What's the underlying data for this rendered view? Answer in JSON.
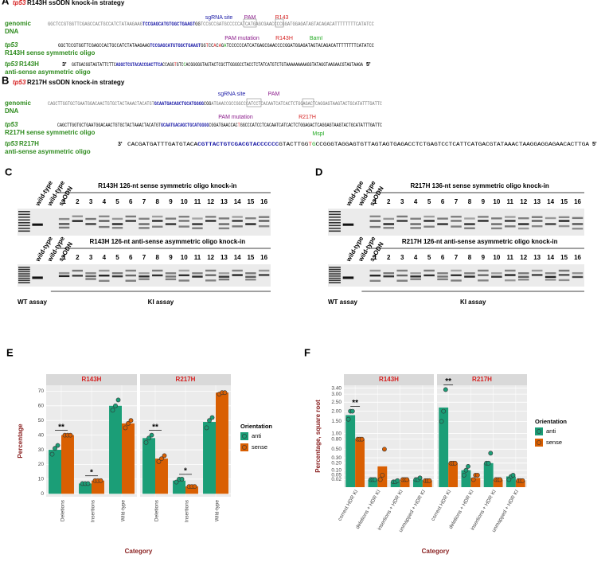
{
  "panel_a": {
    "label": "A",
    "gene": "tp53",
    "title": "R143H ssODN knock-in strategy",
    "annotations": [
      "sgRNA site",
      "PAM",
      "R143",
      "PAM mutation",
      "R143H",
      "BamI"
    ],
    "rows": [
      {
        "line1": "genomic",
        "line2": "DNA",
        "sequence": [
          {
            "text": "GGCTCCGTGGTTCGAGCCACTGCCATCTATAAGAAG",
            "color": "#777777"
          },
          {
            "text": "TCCGAGCATGTGGCTGAAGT",
            "color": "#1a1aa6"
          },
          {
            "text": "GG",
            "color": "#000000"
          },
          {
            "text": "TCCGCCGATGCCCCCATCATGAGCGAACCCCGGATGGAGATAGTACAGACATTTTTTTTCATATCC",
            "color": "#777777"
          }
        ]
      },
      {
        "gene": "tp53",
        "line2": "R143H sense symmetric oligo",
        "sequence": [
          {
            "text": "GGCTCCGTGGTTCGAGCCACTGCCATCTATAAGAAG",
            "color": "#000000"
          },
          {
            "text": "TCCGAGCATGTGGCTGAAGT",
            "color": "#1a1aa6"
          },
          {
            "text": "GG",
            "color": "#000000"
          },
          {
            "text": "T",
            "color": "#e02020"
          },
          {
            "text": "CC",
            "color": "#000000"
          },
          {
            "text": "A",
            "color": "#e02020"
          },
          {
            "text": "C",
            "color": "#000000"
          },
          {
            "text": "A",
            "color": "#e02020"
          },
          {
            "text": "G",
            "color": "#000000"
          },
          {
            "text": "A",
            "color": "#22aa22"
          },
          {
            "text": "TCCCCCCATCATGAGCGAACCCCGGATGGAGATAGTACAGACATTTTTTTTCATATCC",
            "color": "#000000"
          }
        ]
      },
      {
        "gene": "tp53",
        "line1": "R143H",
        "line2": "anti-sense asymmetric oligo",
        "start": "3'",
        "end": "5'",
        "sequence": [
          {
            "text": "GGTGACGGTAGTATTCTTC",
            "color": "#000000"
          },
          {
            "text": "AGGCTCGTACACCGACTTCA",
            "color": "#1a1aa6"
          },
          {
            "text": "CCAGG",
            "color": "#000000"
          },
          {
            "text": "T",
            "color": "#e02020"
          },
          {
            "text": "GTC",
            "color": "#000000"
          },
          {
            "text": "C",
            "color": "#22aa22"
          },
          {
            "text": "ACGGGGGTAGTACTCGCTTGGGGCCTACCTCTATCATGTCTGTAAAAAAAAAGGTATAGGTAAGAACGTAGTAAGA",
            "color": "#000000"
          }
        ]
      }
    ]
  },
  "panel_b": {
    "label": "B",
    "gene": "tp53",
    "title": "R217H ssODN knock-in strategy",
    "annotations": [
      "sgRNA site",
      "PAM",
      "PAM mutation",
      "R217H",
      "MspI"
    ],
    "rows": [
      {
        "line1": "genomic",
        "line2": "DNA",
        "sequence": [
          {
            "text": "CAGCTTGGTGCTGAATGGACAACTGTGCTACTAAACTACATGT",
            "color": "#777777"
          },
          {
            "text": "GCAATGACAGCTGCATGGGG",
            "color": "#1a1aa6"
          },
          {
            "text": "CGG",
            "color": "#000000"
          },
          {
            "text": "ATGAACCGCCGGCCCATCCTCACAATCATCACTCTGGAGACTCAGGAGTAAGTACTGCATATTTGATTC",
            "color": "#777777"
          }
        ]
      },
      {
        "gene": "tp53",
        "line2": "R217H sense symmetric oligo",
        "sequence": [
          {
            "text": "CAGCTTGGTGCTGAATGGACAACTGTGCTACTAAACTACATGT",
            "color": "#000000"
          },
          {
            "text": "GCAATGACAGCTGCATGGGG",
            "color": "#1a1aa6"
          },
          {
            "text": "CGGATGAACCAC",
            "color": "#000000"
          },
          {
            "text": "T",
            "color": "#e02020"
          },
          {
            "text": "GGCCCATCCTCACAATCATCACTCTGGAGACTCAGGAGTAAGTACTGCATATTTGATTC",
            "color": "#000000"
          }
        ]
      },
      {
        "gene": "tp53",
        "line1": "R217H",
        "line2": "anti-sense asymmetric oligo",
        "start": "3'",
        "end": "5'",
        "sequence": [
          {
            "text": "CACGATGATTTGATGTACA",
            "color": "#000000"
          },
          {
            "text": "CGTTACTGTCGACGTACCCCCC",
            "color": "#1a1aa6"
          },
          {
            "text": "GTACTTGG",
            "color": "#000000"
          },
          {
            "text": "T",
            "color": "#e02020"
          },
          {
            "text": "G",
            "color": "#22aa22"
          },
          {
            "text": "CCGGGTAGGAGTGTTAGTAGTGAGACCTCTGAGTCCTCATTCATGACGTATAAACTAAGGAGGAGAACACTTGA",
            "color": "#000000"
          }
        ]
      }
    ]
  },
  "panel_c": {
    "label": "C",
    "gels": [
      {
        "controls": [
          "wild-type",
          "wild-type",
          "ssODN"
        ],
        "title": "R143H 126-nt sense symmetric oligo knock-in",
        "lanes": [
          1,
          2,
          3,
          4,
          5,
          6,
          7,
          8,
          9,
          10,
          11,
          12,
          13,
          14,
          15,
          16
        ]
      },
      {
        "controls": [
          "wild-type",
          "wild-type",
          "ssODN"
        ],
        "title": "R143H 126-nt anti-sense asymmetric oligo knock-in",
        "lanes": [
          1,
          2,
          3,
          4,
          5,
          6,
          7,
          8,
          9,
          10,
          11,
          12,
          13,
          14,
          15,
          16
        ]
      }
    ],
    "footer": [
      "WT assay",
      "KI assay"
    ]
  },
  "panel_d": {
    "label": "D",
    "gels": [
      {
        "controls": [
          "wild-type",
          "wild-type",
          "ssODN"
        ],
        "title": "R217H 136-nt sense symmetric oligo knock-in",
        "lanes": [
          1,
          2,
          3,
          4,
          5,
          6,
          7,
          8,
          9,
          10,
          11,
          12,
          13,
          14,
          15,
          16
        ]
      },
      {
        "controls": [
          "wild-type",
          "wild-type",
          "ssODN"
        ],
        "title": "R217H 126-nt anti-sense asymmetric oligo knock-in",
        "lanes": [
          1,
          2,
          3,
          4,
          5,
          6,
          7,
          8,
          9,
          10,
          11,
          12,
          13,
          14,
          15,
          16
        ]
      }
    ],
    "footer": [
      "WT assay",
      "KI assay"
    ]
  },
  "chart_data": [
    {
      "type": "bar",
      "panel": "E",
      "ylabel": "Percentage",
      "xlabel": "Category",
      "legend_title": "Orientation",
      "categories": [
        "Deletions",
        "Insertions",
        "Wild-type"
      ],
      "ylim": [
        -2,
        74
      ],
      "yticks": [
        0,
        10,
        20,
        30,
        40,
        50,
        60,
        70
      ],
      "facets": [
        {
          "title": "R143H",
          "significance": [
            "**",
            "*",
            null
          ],
          "series": [
            {
              "name": "anti",
              "color": "#1b9e77",
              "values": [
                30,
                7,
                60
              ],
              "points": [
                [
                  27,
                  31,
                  33
                ],
                [
                  7,
                  7,
                  7
                ],
                [
                  57,
                  60,
                  64
                ]
              ]
            },
            {
              "name": "sense",
              "color": "#d95f02",
              "values": [
                40,
                9,
                48
              ],
              "points": [
                [
                  40,
                  40,
                  40
                ],
                [
                  9,
                  9,
                  9
                ],
                [
                  45,
                  48,
                  50
                ]
              ]
            }
          ]
        },
        {
          "title": "R217H",
          "significance": [
            "**",
            "*",
            null
          ],
          "series": [
            {
              "name": "anti",
              "color": "#1b9e77",
              "values": [
                38,
                9,
                49
              ],
              "points": [
                [
                  35,
                  38,
                  40
                ],
                [
                  8,
                  10,
                  10
                ],
                [
                  45,
                  50,
                  52
                ]
              ]
            },
            {
              "name": "sense",
              "color": "#d95f02",
              "values": [
                24,
                5,
                69
              ],
              "points": [
                [
                  22,
                  24,
                  26
                ],
                [
                  5,
                  5,
                  5
                ],
                [
                  68,
                  69,
                  69
                ]
              ]
            }
          ]
        }
      ]
    },
    {
      "type": "bar",
      "panel": "F",
      "ylabel": "Percentage, square root",
      "xlabel": "Category",
      "legend_title": "Orientation",
      "yscale": "sqrt",
      "categories": [
        "correct HDR KI",
        "deletions + HDR KI",
        "insertions + HDR KI",
        "unmapped + HDR KI"
      ],
      "ylim": [
        0,
        3.6
      ],
      "yticks": [
        {
          "value": 0.02,
          "label": "0.02"
        },
        {
          "value": 0.05,
          "label": "0.05"
        },
        {
          "value": 0.1,
          "label": "0.10"
        },
        {
          "value": 0.2,
          "label": "0.20"
        },
        {
          "value": 0.3,
          "label": "0.30"
        },
        {
          "value": 0.5,
          "label": "0.50"
        },
        {
          "value": 0.8,
          "label": "0.80"
        },
        {
          "value": 1,
          "label": "1.00"
        },
        {
          "value": 1.5,
          "label": "1.50"
        },
        {
          "value": 2,
          "label": "2.00"
        },
        {
          "value": 2.5,
          "label": "2.50"
        },
        {
          "value": 3,
          "label": "3.00"
        },
        {
          "value": 3.4,
          "label": "3.40"
        }
      ],
      "facets": [
        {
          "title": "R143H",
          "significance": [
            "**",
            null,
            null,
            null
          ],
          "series": [
            {
              "name": "anti",
              "color": "#1b9e77",
              "values": [
                1.8,
                0.02,
                0.01,
                0.02
              ],
              "points": [
                [
                  1.6,
                  2.0,
                  2.0
                ],
                [
                  0.02,
                  0.02,
                  0.02
                ],
                [
                  0.01,
                  0.01,
                  0.015
                ],
                [
                  0.02,
                  0.02,
                  0.03
                ]
              ]
            },
            {
              "name": "sense",
              "color": "#d95f02",
              "values": [
                0.8,
                0.15,
                0.02,
                0.015
              ],
              "points": [
                [
                  0.8,
                  0.8,
                  0.8
                ],
                [
                  0.02,
                  0.05,
                  0.5
                ],
                [
                  0.02,
                  0.02,
                  0.02
                ],
                [
                  0.015,
                  0.015,
                  0.015
                ]
              ]
            }
          ]
        },
        {
          "title": "R217H",
          "significance": [
            "**",
            null,
            null,
            null
          ],
          "series": [
            {
              "name": "anti",
              "color": "#1b9e77",
              "values": [
                2.2,
                0.1,
                0.2,
                0.04
              ],
              "points": [
                [
                  1.5,
                  2.0,
                  3.3
                ],
                [
                  0.05,
                  0.1,
                  0.15
                ],
                [
                  0.2,
                  0.2,
                  0.4
                ],
                [
                  0.02,
                  0.04,
                  0.05
                ]
              ]
            },
            {
              "name": "sense",
              "color": "#d95f02",
              "values": [
                0.2,
                0.03,
                0.02,
                0.015
              ],
              "points": [
                [
                  0.2,
                  0.2,
                  0.2
                ],
                [
                  0.02,
                  0.05,
                  0.05
                ],
                [
                  0.02,
                  0.02,
                  0.02
                ],
                [
                  0.015,
                  0.015,
                  0.015
                ]
              ]
            }
          ]
        }
      ]
    }
  ]
}
